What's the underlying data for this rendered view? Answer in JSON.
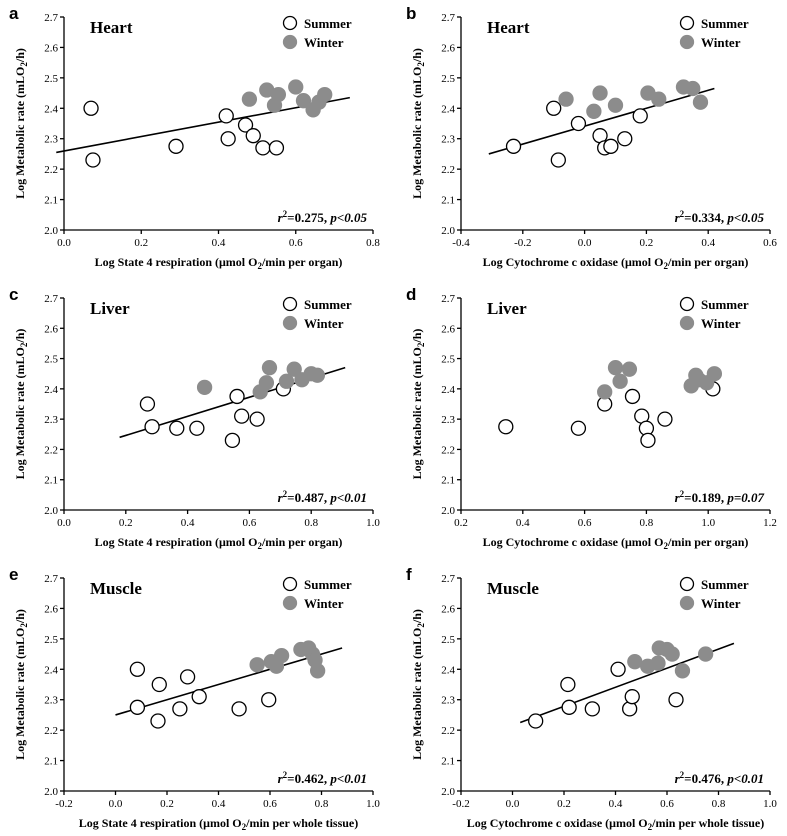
{
  "chart_data": [
    {
      "type": "scatter",
      "panel": "a",
      "title": "Heart",
      "xlabel": "Log State 4 respiration (μmol O2/min per organ)",
      "ylabel": "Log Metabolic rate (mLO2/h)",
      "xlim": [
        0.0,
        0.8
      ],
      "ylim": [
        2.0,
        2.7
      ],
      "xticks": [
        "0.0",
        "0.2",
        "0.4",
        "0.6",
        "0.8"
      ],
      "yticks": [
        "2.0",
        "2.1",
        "2.2",
        "2.3",
        "2.4",
        "2.5",
        "2.6",
        "2.7"
      ],
      "legend_position": "top-right",
      "stat": {
        "r2": "0.275",
        "p": "p<0.05"
      },
      "fit_line": {
        "x": [
          -0.02,
          0.74
        ],
        "y": [
          2.255,
          2.435
        ]
      },
      "series": [
        {
          "name": "Summer",
          "fill": "none",
          "x": [
            0.07,
            0.075,
            0.29,
            0.42,
            0.425,
            0.47,
            0.49,
            0.515,
            0.55
          ],
          "y": [
            2.4,
            2.23,
            2.275,
            2.375,
            2.3,
            2.345,
            2.31,
            2.27,
            2.27
          ]
        },
        {
          "name": "Winter",
          "fill": "#8c8c8c",
          "x": [
            0.48,
            0.525,
            0.545,
            0.555,
            0.6,
            0.62,
            0.645,
            0.66,
            0.675
          ],
          "y": [
            2.43,
            2.46,
            2.41,
            2.445,
            2.47,
            2.425,
            2.395,
            2.42,
            2.445
          ]
        }
      ]
    },
    {
      "type": "scatter",
      "panel": "b",
      "title": "Heart",
      "xlabel": "Log Cytochrome c oxidase (μmol O2/min per organ)",
      "ylabel": "Log Metabolic rate (mLO2/h)",
      "xlim": [
        -0.4,
        0.6
      ],
      "ylim": [
        2.0,
        2.7
      ],
      "xticks": [
        "-0.4",
        "-0.2",
        "0.0",
        "0.2",
        "0.4",
        "0.6"
      ],
      "yticks": [
        "2.0",
        "2.1",
        "2.2",
        "2.3",
        "2.4",
        "2.5",
        "2.6",
        "2.7"
      ],
      "legend_position": "top-right",
      "stat": {
        "r2": "0.334",
        "p": "p<0.05"
      },
      "fit_line": {
        "x": [
          -0.31,
          0.42
        ],
        "y": [
          2.25,
          2.465
        ]
      },
      "series": [
        {
          "name": "Summer",
          "fill": "none",
          "x": [
            -0.23,
            -0.085,
            -0.1,
            -0.02,
            0.05,
            0.065,
            0.085,
            0.13,
            0.18
          ],
          "y": [
            2.275,
            2.23,
            2.4,
            2.35,
            2.31,
            2.27,
            2.275,
            2.3,
            2.375
          ]
        },
        {
          "name": "Winter",
          "fill": "#8c8c8c",
          "x": [
            -0.06,
            0.03,
            0.05,
            0.1,
            0.205,
            0.24,
            0.32,
            0.35,
            0.375
          ],
          "y": [
            2.43,
            2.39,
            2.45,
            2.41,
            2.45,
            2.43,
            2.47,
            2.465,
            2.42
          ]
        }
      ]
    },
    {
      "type": "scatter",
      "panel": "c",
      "title": "Liver",
      "xlabel": "Log State 4 respiration (μmol O2/min per organ)",
      "ylabel": "Log Metabolic rate (mLO2/h)",
      "xlim": [
        0.0,
        1.0
      ],
      "ylim": [
        2.0,
        2.7
      ],
      "xticks": [
        "0.0",
        "0.2",
        "0.4",
        "0.6",
        "0.8",
        "1.0"
      ],
      "yticks": [
        "2.0",
        "2.1",
        "2.2",
        "2.3",
        "2.4",
        "2.5",
        "2.6",
        "2.7"
      ],
      "legend_position": "top-right",
      "stat": {
        "r2": "0.487",
        "p": "p<0.01"
      },
      "fit_line": {
        "x": [
          0.18,
          0.91
        ],
        "y": [
          2.24,
          2.47
        ]
      },
      "series": [
        {
          "name": "Summer",
          "fill": "none",
          "x": [
            0.27,
            0.285,
            0.365,
            0.43,
            0.545,
            0.56,
            0.575,
            0.625,
            0.71
          ],
          "y": [
            2.35,
            2.275,
            2.27,
            2.27,
            2.23,
            2.375,
            2.31,
            2.3,
            2.4
          ]
        },
        {
          "name": "Winter",
          "fill": "#8c8c8c",
          "x": [
            0.455,
            0.635,
            0.655,
            0.665,
            0.72,
            0.745,
            0.77,
            0.8,
            0.82
          ],
          "y": [
            2.405,
            2.39,
            2.42,
            2.47,
            2.425,
            2.465,
            2.43,
            2.45,
            2.445
          ]
        }
      ]
    },
    {
      "type": "scatter",
      "panel": "d",
      "title": "Liver",
      "xlabel": "Log Cytochrome c oxidase (μmol O2/min per organ)",
      "ylabel": "Log Metabolic rate (mLO2/h)",
      "xlim": [
        0.2,
        1.2
      ],
      "ylim": [
        2.0,
        2.7
      ],
      "xticks": [
        "0.2",
        "0.4",
        "0.6",
        "0.8",
        "1.0",
        "1.2"
      ],
      "yticks": [
        "2.0",
        "2.1",
        "2.2",
        "2.3",
        "2.4",
        "2.5",
        "2.6",
        "2.7"
      ],
      "legend_position": "top-right",
      "stat": {
        "r2": "0.189",
        "p": "p=0.07"
      },
      "fit_line": null,
      "series": [
        {
          "name": "Summer",
          "fill": "none",
          "x": [
            0.345,
            0.58,
            0.665,
            0.755,
            0.785,
            0.8,
            0.805,
            0.86,
            1.015
          ],
          "y": [
            2.275,
            2.27,
            2.35,
            2.375,
            2.31,
            2.27,
            2.23,
            2.3,
            2.4
          ]
        },
        {
          "name": "Winter",
          "fill": "#8c8c8c",
          "x": [
            0.665,
            0.7,
            0.715,
            0.745,
            0.945,
            0.96,
            0.97,
            0.995,
            1.02
          ],
          "y": [
            2.39,
            2.47,
            2.425,
            2.465,
            2.41,
            2.445,
            2.43,
            2.42,
            2.45
          ]
        }
      ]
    },
    {
      "type": "scatter",
      "panel": "e",
      "title": "Muscle",
      "xlabel": "Log State 4 respiration (μmol O2/min per whole tissue)",
      "ylabel": "Log Metabolic rate (mLO2/h)",
      "xlim": [
        -0.2,
        1.0
      ],
      "ylim": [
        2.0,
        2.7
      ],
      "xticks": [
        "-0.2",
        "0.0",
        "0.2",
        "0.4",
        "0.6",
        "0.8",
        "1.0"
      ],
      "yticks": [
        "2.0",
        "2.1",
        "2.2",
        "2.3",
        "2.4",
        "2.5",
        "2.6",
        "2.7"
      ],
      "legend_position": "top-right",
      "stat": {
        "r2": "0.462",
        "p": "p<0.01"
      },
      "fit_line": {
        "x": [
          0.0,
          0.88
        ],
        "y": [
          2.25,
          2.47
        ]
      },
      "series": [
        {
          "name": "Summer",
          "fill": "none",
          "x": [
            0.085,
            0.085,
            0.165,
            0.17,
            0.25,
            0.28,
            0.325,
            0.48,
            0.595
          ],
          "y": [
            2.4,
            2.275,
            2.23,
            2.35,
            2.27,
            2.375,
            2.31,
            2.27,
            2.3
          ]
        },
        {
          "name": "Winter",
          "fill": "#8c8c8c",
          "x": [
            0.55,
            0.605,
            0.625,
            0.645,
            0.72,
            0.75,
            0.765,
            0.775,
            0.785
          ],
          "y": [
            2.415,
            2.425,
            2.41,
            2.445,
            2.465,
            2.47,
            2.45,
            2.43,
            2.395
          ]
        }
      ]
    },
    {
      "type": "scatter",
      "panel": "f",
      "title": "Muscle",
      "xlabel": "Log Cytochrome c oxidase (μmol O2/min per whole tissue)",
      "ylabel": "Log Metabolic rate (mLO2/h)",
      "xlim": [
        -0.2,
        1.0
      ],
      "ylim": [
        2.0,
        2.7
      ],
      "xticks": [
        "-0.2",
        "0.0",
        "0.2",
        "0.4",
        "0.6",
        "0.8",
        "1.0"
      ],
      "yticks": [
        "2.0",
        "2.1",
        "2.2",
        "2.3",
        "2.4",
        "2.5",
        "2.6",
        "2.7"
      ],
      "legend_position": "top-right",
      "stat": {
        "r2": "0.476",
        "p": "p<0.01"
      },
      "fit_line": {
        "x": [
          0.03,
          0.86
        ],
        "y": [
          2.225,
          2.485
        ]
      },
      "series": [
        {
          "name": "Summer",
          "fill": "none",
          "x": [
            0.09,
            0.215,
            0.22,
            0.31,
            0.41,
            0.455,
            0.465,
            0.635
          ],
          "y": [
            2.23,
            2.35,
            2.275,
            2.27,
            2.4,
            2.27,
            2.31,
            2.3
          ]
        },
        {
          "name": "Winter",
          "fill": "#8c8c8c",
          "x": [
            0.475,
            0.525,
            0.565,
            0.57,
            0.6,
            0.62,
            0.66,
            0.75
          ],
          "y": [
            2.425,
            2.41,
            2.42,
            2.47,
            2.465,
            2.45,
            2.395,
            2.45
          ]
        }
      ]
    }
  ]
}
